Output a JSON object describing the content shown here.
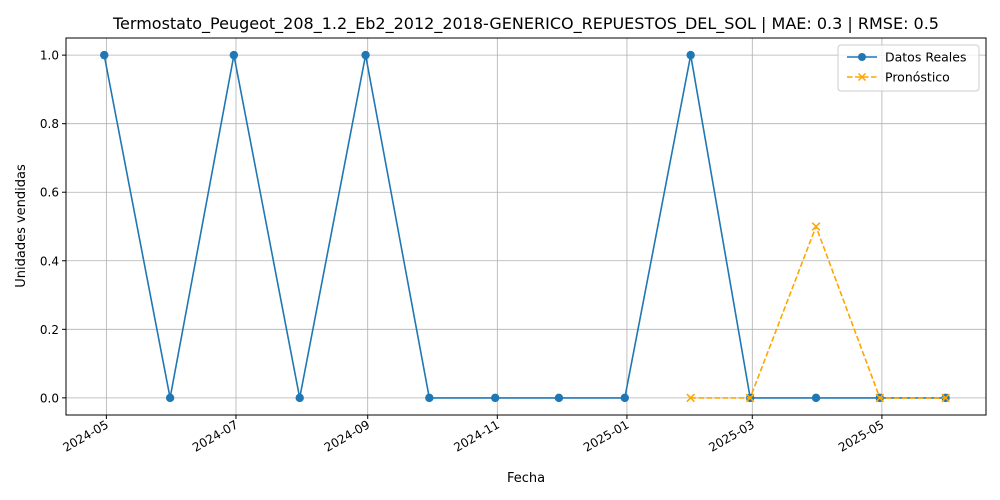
{
  "chart_data": {
    "type": "line",
    "title": "Termostato_Peugeot_208_1.2_Eb2_2012_2018-GENERICO_REPUESTOS_DEL_SOL | MAE: 0.3 | RMSE: 0.5",
    "xlabel": "Fecha",
    "ylabel": "Unidades vendidas",
    "ylim": [
      -0.05,
      1.05
    ],
    "xlim": [
      "2024-04-12",
      "2025-06-19"
    ],
    "grid": true,
    "legend_position": "top-right",
    "x_ticks": [
      "2024-05",
      "2024-07",
      "2024-09",
      "2024-11",
      "2025-01",
      "2025-03",
      "2025-05"
    ],
    "y_ticks": [
      "0.0",
      "0.2",
      "0.4",
      "0.6",
      "0.8",
      "1.0"
    ],
    "series": [
      {
        "name": "Datos Reales",
        "color": "#1f77b4",
        "style": "solid",
        "marker": "circle",
        "x": [
          "2024-04-30",
          "2024-05-31",
          "2024-06-30",
          "2024-07-31",
          "2024-08-31",
          "2024-09-30",
          "2024-10-31",
          "2024-11-30",
          "2024-12-31",
          "2025-01-31",
          "2025-02-28",
          "2025-03-31",
          "2025-04-30",
          "2025-05-31"
        ],
        "values": [
          1,
          0,
          1,
          0,
          1,
          0,
          0,
          0,
          0,
          1,
          0,
          0,
          0,
          0
        ]
      },
      {
        "name": "Pronóstico",
        "color": "#ffa500",
        "style": "dashed",
        "marker": "x",
        "x": [
          "2025-01-31",
          "2025-02-28",
          "2025-03-31",
          "2025-04-30",
          "2025-05-31"
        ],
        "values": [
          0,
          0,
          0.5,
          0,
          0
        ]
      }
    ]
  }
}
